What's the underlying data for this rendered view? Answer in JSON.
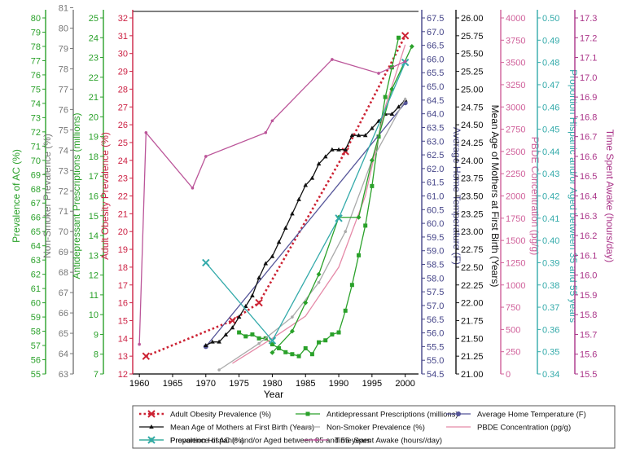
{
  "chart_data": {
    "type": "line",
    "xlabel": "Year",
    "x_ticks": [
      1960,
      1965,
      1970,
      1975,
      1980,
      1985,
      1990,
      1995,
      2000
    ],
    "xlim": [
      1959,
      2002
    ],
    "axes": [
      {
        "id": "ac",
        "label": "Prevalence of AC (%)",
        "color": "#2aa12a",
        "min": 55,
        "max": 80,
        "step": 1
      },
      {
        "id": "nonsmoker",
        "label": "Non-Smoker Prevalence (%)",
        "color": "#777777",
        "min": 63,
        "max": 80.5,
        "step": 1
      },
      {
        "id": "antidep",
        "label": "Antidepressant Prescriptions (millions)",
        "color": "#2aa12a",
        "min": 7,
        "max": 25,
        "step": 1
      },
      {
        "id": "obesity",
        "label": "Adult Obesity Prevalence (%)",
        "color": "#cc2244",
        "min": 12,
        "max": 32,
        "step": 1
      },
      {
        "id": "hometemp",
        "label": "Average Home Temperature (F)",
        "color": "#444488",
        "min": 54.5,
        "max": 67.5,
        "step": 0.5
      },
      {
        "id": "motherage",
        "label": "Mean Age of Mothers at First Birth (Years)",
        "color": "#111111",
        "min": 21.0,
        "max": 26.0,
        "step": 0.25
      },
      {
        "id": "pbde",
        "label": "PBDE Concentration (pg/g)",
        "color": "#d0609a",
        "min": 0,
        "max": 4000,
        "step": 250
      },
      {
        "id": "hispanic",
        "label": "Proportion Hispanic and/or Aged between 35 and 55 years",
        "color": "#33aaaa",
        "min": 0.34,
        "max": 0.5,
        "step": 0.01
      },
      {
        "id": "awake",
        "label": "Time Spent Awake (hours/day)",
        "color": "#aa3388",
        "min": 15.5,
        "max": 17.3,
        "step": 0.1
      }
    ],
    "series": [
      {
        "name": "Adult Obesity Prevalence (%)",
        "axis": "obesity",
        "color": "#cc2233",
        "style": "dotted",
        "marker": "x",
        "x": [
          1961,
          1974,
          1978,
          1991,
          2000
        ],
        "y": [
          13.0,
          15.0,
          16.0,
          24.5,
          31.0
        ]
      },
      {
        "name": "Antidepressant Prescriptions (millions)",
        "axis": "antidep",
        "color": "#2aa12a",
        "style": "solid",
        "marker": "square",
        "x": [
          1975,
          1976,
          1977,
          1978,
          1979,
          1980,
          1981,
          1982,
          1983,
          1984,
          1985,
          1986,
          1987,
          1988,
          1989,
          1990,
          1991,
          1992,
          1993,
          1994,
          1995,
          1996,
          1997,
          1998,
          1999
        ],
        "y": [
          9.1,
          8.9,
          9.0,
          8.8,
          8.8,
          8.5,
          8.3,
          8.1,
          8.0,
          7.9,
          8.3,
          8.0,
          8.6,
          8.7,
          9.0,
          9.1,
          10.2,
          11.5,
          13.0,
          14.5,
          16.5,
          19.0,
          21.0,
          22.5,
          24.0
        ]
      },
      {
        "name": "Average Home Temperature (F)",
        "axis": "hometemp",
        "color": "#555599",
        "style": "solid",
        "marker": "circle",
        "x": [
          1970,
          2000
        ],
        "y": [
          55.5,
          64.4
        ]
      },
      {
        "name": "Mean Age of Mothers at First Birth (Years)",
        "axis": "motherage",
        "color": "#111111",
        "style": "solid",
        "marker": "triangle",
        "x": [
          1970,
          1971,
          1972,
          1973,
          1974,
          1975,
          1976,
          1977,
          1978,
          1979,
          1980,
          1981,
          1982,
          1983,
          1984,
          1985,
          1986,
          1987,
          1988,
          1989,
          1990,
          1991,
          1992,
          1993,
          1994,
          1995,
          1996,
          1997,
          1998,
          1999,
          2000
        ],
        "y": [
          21.4,
          21.45,
          21.45,
          21.55,
          21.65,
          21.8,
          21.95,
          22.1,
          22.35,
          22.55,
          22.65,
          22.85,
          23.05,
          23.25,
          23.45,
          23.65,
          23.75,
          23.95,
          24.05,
          24.15,
          24.15,
          24.15,
          24.35,
          24.35,
          24.35,
          24.45,
          24.55,
          24.65,
          24.65,
          24.75,
          24.85
        ]
      },
      {
        "name": "Non-Smoker Prevalence (%)",
        "axis": "nonsmoker",
        "color": "#aaaaaa",
        "style": "solid",
        "marker": "dot",
        "x": [
          1972,
          1978,
          1983,
          1987,
          1991,
          1995,
          2000
        ],
        "y": [
          63.2,
          64.5,
          65.8,
          67.5,
          70.0,
          73.5,
          76.5
        ]
      },
      {
        "name": "PBDE Concentration (pg/g)",
        "axis": "pbde",
        "color": "#e58aa8",
        "style": "solid",
        "marker": "none",
        "x": [
          1974,
          1980,
          1985,
          1990,
          1994,
          1997,
          2000
        ],
        "y": [
          120,
          400,
          650,
          1200,
          2000,
          3000,
          3700
        ]
      },
      {
        "name": "Prevalence of AC (%)",
        "axis": "ac",
        "color": "#2aa12a",
        "style": "solid",
        "marker": "diamond",
        "x": [
          1980,
          1983,
          1985,
          1987,
          1990,
          1993,
          1995,
          1998,
          2001
        ],
        "y": [
          56.5,
          58.0,
          60.0,
          62.0,
          66.0,
          66.0,
          70.0,
          75.0,
          78.0
        ]
      },
      {
        "name": "Proportion Hispanic and/or Aged between 35 and 55 years",
        "axis": "hispanic",
        "color": "#33aaaa",
        "style": "solid",
        "marker": "x",
        "x": [
          1970,
          1980,
          1990,
          2000
        ],
        "y": [
          0.39,
          0.355,
          0.41,
          0.48
        ]
      },
      {
        "name": "Time Spent Awake (hours/day)",
        "axis": "awake",
        "color": "#bb5599",
        "style": "solid",
        "marker": "dot",
        "x": [
          1960,
          1961,
          1968,
          1970,
          1979,
          1980,
          1989,
          1996,
          2000
        ],
        "y": [
          15.65,
          16.72,
          16.44,
          16.6,
          16.72,
          16.78,
          17.09,
          17.02,
          17.08
        ]
      }
    ],
    "legend": [
      "Adult Obesity Prevalence (%)",
      "Antidepressant Prescriptions (millions)",
      "Average Home Temperature (F)",
      "Mean Age of Mothers at First Birth (Years)",
      "Non-Smoker Prevalence (%)",
      "PBDE Concentration (pg/g)",
      "Prevalence of AC (%)",
      "Proportion Hispanic and/or Aged between 35 and 55 years",
      "Time Spent Awake (hours//day)"
    ],
    "legend_position": "bottom"
  }
}
